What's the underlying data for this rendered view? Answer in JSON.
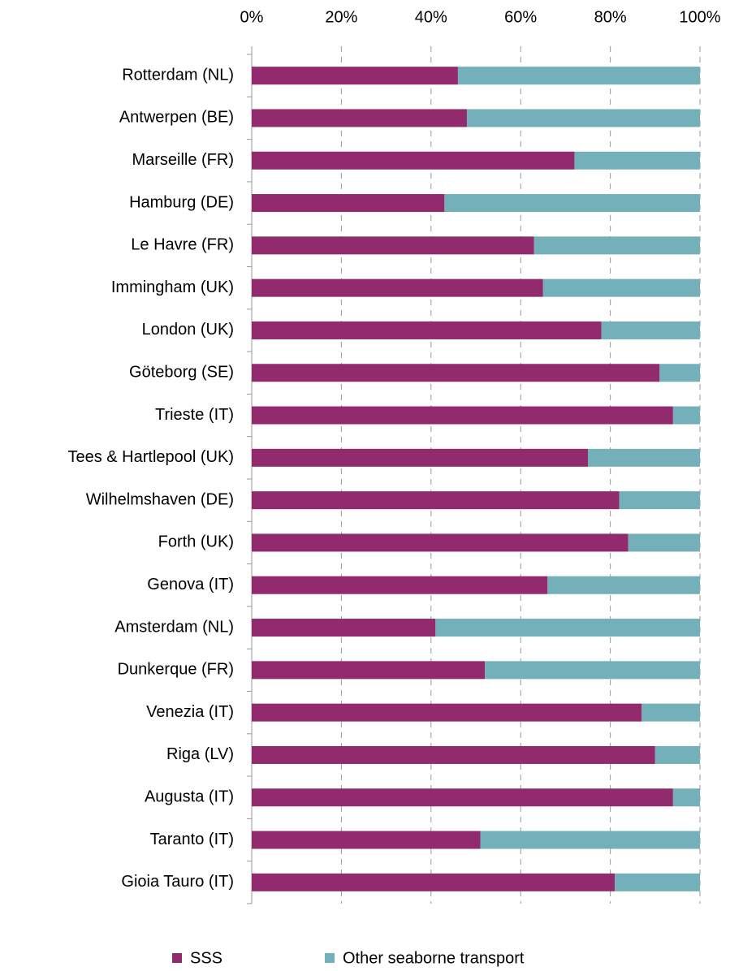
{
  "chart_data": {
    "type": "stacked_barh",
    "categories": [
      "Rotterdam (NL)",
      "Antwerpen (BE)",
      "Marseille (FR)",
      "Hamburg (DE)",
      "Le Havre (FR)",
      "Immingham (UK)",
      "London (UK)",
      "Göteborg (SE)",
      "Trieste (IT)",
      "Tees & Hartlepool (UK)",
      "Wilhelmshaven (DE)",
      "Forth (UK)",
      "Genova (IT)",
      "Amsterdam (NL)",
      "Dunkerque (FR)",
      "Venezia (IT)",
      "Riga (LV)",
      "Augusta (IT)",
      "Taranto (IT)",
      "Gioia Tauro (IT)"
    ],
    "series": [
      {
        "name": "SSS",
        "color": "#922a6e",
        "values": [
          46,
          48,
          72,
          43,
          63,
          65,
          78,
          91,
          94,
          75,
          82,
          84,
          66,
          41,
          52,
          87,
          90,
          94,
          51,
          81
        ]
      },
      {
        "name": "Other seaborne transport",
        "color": "#74b0b9",
        "values": [
          54,
          52,
          28,
          57,
          37,
          35,
          22,
          9,
          6,
          25,
          18,
          16,
          34,
          59,
          48,
          13,
          10,
          6,
          49,
          19
        ]
      }
    ],
    "xlim": [
      0,
      100
    ],
    "xticks": [
      {
        "value": 0,
        "label": "0%"
      },
      {
        "value": 20,
        "label": "20%"
      },
      {
        "value": 40,
        "label": "40%"
      },
      {
        "value": 60,
        "label": "60%"
      },
      {
        "value": 80,
        "label": "80%"
      },
      {
        "value": 100,
        "label": "100%"
      }
    ],
    "grid": true
  }
}
